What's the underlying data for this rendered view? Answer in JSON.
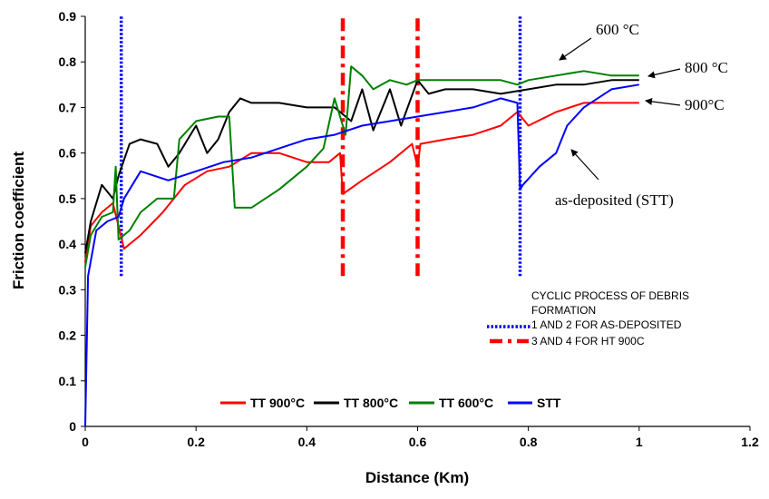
{
  "chart_data": {
    "type": "line",
    "title": "",
    "xlabel": "Distance (Km)",
    "ylabel": "Friction coefficient",
    "xlim": [
      0,
      1.2
    ],
    "ylim": [
      0,
      0.9
    ],
    "x_ticks": [
      "0",
      "0.2",
      "0.4",
      "0.6",
      "0.8",
      "1",
      "1.2"
    ],
    "y_ticks": [
      "0",
      "0.1",
      "0.2",
      "0.3",
      "0.4",
      "0.5",
      "0.6",
      "0.7",
      "0.8",
      "0.9"
    ],
    "grid": false,
    "legend_position": "bottom-center",
    "series": [
      {
        "name": "TT 900°C",
        "color": "#ff0000",
        "x": [
          0,
          0.01,
          0.03,
          0.05,
          0.07,
          0.1,
          0.14,
          0.18,
          0.22,
          0.26,
          0.3,
          0.35,
          0.4,
          0.44,
          0.46,
          0.465,
          0.5,
          0.55,
          0.59,
          0.6,
          0.605,
          0.65,
          0.7,
          0.75,
          0.78,
          0.8,
          0.85,
          0.9,
          0.95,
          1.0
        ],
        "y": [
          0.36,
          0.44,
          0.47,
          0.49,
          0.39,
          0.42,
          0.47,
          0.53,
          0.56,
          0.57,
          0.6,
          0.6,
          0.58,
          0.58,
          0.6,
          0.51,
          0.54,
          0.58,
          0.62,
          0.57,
          0.62,
          0.63,
          0.64,
          0.66,
          0.69,
          0.66,
          0.69,
          0.71,
          0.71,
          0.71
        ]
      },
      {
        "name": "TT 800°C",
        "color": "#000000",
        "x": [
          0,
          0.01,
          0.03,
          0.05,
          0.06,
          0.08,
          0.1,
          0.13,
          0.15,
          0.17,
          0.2,
          0.22,
          0.24,
          0.26,
          0.28,
          0.3,
          0.35,
          0.4,
          0.45,
          0.48,
          0.5,
          0.52,
          0.55,
          0.57,
          0.6,
          0.62,
          0.65,
          0.7,
          0.75,
          0.8,
          0.85,
          0.9,
          0.95,
          1.0
        ],
        "y": [
          0.38,
          0.45,
          0.53,
          0.5,
          0.55,
          0.62,
          0.63,
          0.62,
          0.57,
          0.6,
          0.66,
          0.6,
          0.63,
          0.69,
          0.72,
          0.71,
          0.71,
          0.7,
          0.7,
          0.67,
          0.74,
          0.65,
          0.74,
          0.66,
          0.76,
          0.73,
          0.74,
          0.74,
          0.73,
          0.74,
          0.75,
          0.75,
          0.76,
          0.76
        ]
      },
      {
        "name": "TT 600°C",
        "color": "#008000",
        "x": [
          0,
          0.01,
          0.03,
          0.05,
          0.055,
          0.06,
          0.08,
          0.1,
          0.13,
          0.16,
          0.17,
          0.2,
          0.24,
          0.26,
          0.27,
          0.3,
          0.35,
          0.4,
          0.43,
          0.45,
          0.47,
          0.48,
          0.5,
          0.52,
          0.55,
          0.58,
          0.6,
          0.65,
          0.7,
          0.75,
          0.78,
          0.8,
          0.85,
          0.9,
          0.95,
          1.0
        ],
        "y": [
          0.35,
          0.42,
          0.46,
          0.47,
          0.57,
          0.41,
          0.43,
          0.47,
          0.5,
          0.5,
          0.63,
          0.67,
          0.68,
          0.68,
          0.48,
          0.48,
          0.52,
          0.57,
          0.61,
          0.72,
          0.64,
          0.79,
          0.77,
          0.74,
          0.76,
          0.75,
          0.76,
          0.76,
          0.76,
          0.76,
          0.75,
          0.76,
          0.77,
          0.78,
          0.77,
          0.77
        ]
      },
      {
        "name": "STT",
        "color": "#0000ff",
        "x": [
          0,
          0.005,
          0.02,
          0.04,
          0.06,
          0.07,
          0.08,
          0.1,
          0.15,
          0.2,
          0.25,
          0.3,
          0.35,
          0.4,
          0.45,
          0.5,
          0.55,
          0.6,
          0.65,
          0.7,
          0.75,
          0.78,
          0.785,
          0.79,
          0.82,
          0.85,
          0.87,
          0.9,
          0.95,
          1.0
        ],
        "y": [
          0.0,
          0.33,
          0.43,
          0.45,
          0.46,
          0.5,
          0.52,
          0.56,
          0.54,
          0.56,
          0.58,
          0.59,
          0.61,
          0.63,
          0.64,
          0.66,
          0.67,
          0.68,
          0.69,
          0.7,
          0.72,
          0.71,
          0.52,
          0.53,
          0.57,
          0.6,
          0.66,
          0.7,
          0.74,
          0.75
        ]
      }
    ],
    "vertical_lines": [
      {
        "x": 0.065,
        "y_range": [
          0.33,
          0.9
        ],
        "style": "dotted",
        "color": "#0000ff"
      },
      {
        "x": 0.785,
        "y_range": [
          0.33,
          0.9
        ],
        "style": "dotted",
        "color": "#0000ff"
      },
      {
        "x": 0.465,
        "y_range": [
          0.33,
          0.9
        ],
        "style": "dashdot",
        "color": "#ff0000"
      },
      {
        "x": 0.6,
        "y_range": [
          0.33,
          0.9
        ],
        "style": "dashdot",
        "color": "#ff0000"
      }
    ],
    "annotations": [
      {
        "text": "600 °C",
        "target": "TT 600°C"
      },
      {
        "text": "800 °C",
        "target": "TT 800°C"
      },
      {
        "text": "900°C",
        "target": "TT 900°C"
      },
      {
        "text": "as-deposited (STT)",
        "target": "STT"
      }
    ],
    "notes": {
      "line1": "CYCLIC PROCESS OF DEBRIS",
      "line2": "FORMATION",
      "line3": "1 AND 2 FOR AS-DEPOSITED",
      "line4": "3 AND 4  FOR HT 900C"
    }
  }
}
